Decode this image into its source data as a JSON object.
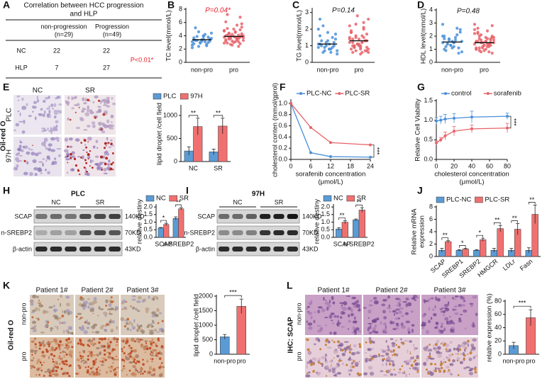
{
  "labels": [
    "A",
    "B",
    "C",
    "D",
    "E",
    "F",
    "G",
    "H",
    "I",
    "J",
    "K",
    "L"
  ],
  "table": {
    "title": [
      "Correlation between HCC progression",
      "and HLP"
    ],
    "header": [
      [
        "non-progression",
        "(n=29)"
      ],
      [
        "Progression",
        "(n=49)"
      ]
    ],
    "rows": [
      [
        "NC",
        22,
        22
      ],
      [
        "HLP",
        7,
        27
      ]
    ],
    "note": "P<0.01*"
  },
  "images": {
    "E": {
      "columns": [
        "NC",
        "SR"
      ],
      "rows": [
        "PLC",
        "97H"
      ],
      "stain": "Oil-red O"
    },
    "H": {
      "title": "PLC",
      "columns": [
        "NC",
        "SR"
      ],
      "rows": [
        "SCAP",
        "n-SREBP2",
        "β-actin"
      ],
      "sizes": [
        "140KD",
        "70KD",
        "43KD"
      ]
    },
    "I": {
      "title": "97H",
      "columns": [
        "NC",
        "SR"
      ],
      "rows": [
        "SCAP",
        "n-SREBP2",
        "β-actin"
      ],
      "sizes": [
        "140KD",
        "70KD",
        "43KD"
      ]
    },
    "K": {
      "columns": [
        "Patient 1#",
        "Patient 2#",
        "Patient 3#"
      ],
      "rows": [
        "non-pro",
        "pro"
      ],
      "stain": "Oil-red O"
    },
    "L": {
      "columns": [
        "Patient 1#",
        "Patient 2#",
        "Patient 3#"
      ],
      "rows": [
        "non-pro",
        "pro"
      ],
      "stain": "IHC: SCAP"
    }
  },
  "chart_data": [
    {
      "type": "strip",
      "ylabel": "TC level(mmol/L)",
      "annotation": "P=0.04*",
      "annotation_color": "#e8202a",
      "categories": [
        "non-pro",
        "pro"
      ],
      "colors": [
        "#4a90d9",
        "#e8636a"
      ],
      "values": [
        [
          3.1,
          3.5,
          2.8,
          4.2,
          3.3,
          2.5,
          3.9,
          3.0,
          4.6,
          3.2,
          2.9,
          3.6,
          3.4,
          2.2,
          4.0,
          3.7,
          3.1,
          5.2,
          2.7,
          3.3,
          3.8,
          2.4,
          3.5,
          3.0,
          4.4,
          3.2,
          2.6,
          3.9,
          3.4
        ],
        [
          3.8,
          4.5,
          3.2,
          5.6,
          2.9,
          4.1,
          3.5,
          6.8,
          3.9,
          4.3,
          2.6,
          3.7,
          5.0,
          4.8,
          3.1,
          4.0,
          3.4,
          7.2,
          3.6,
          4.4,
          2.8,
          3.9,
          5.3,
          4.2,
          3.3,
          3.0,
          4.7,
          3.8,
          6.1,
          3.5,
          4.1,
          2.4,
          3.7,
          4.9,
          3.6,
          5.8,
          3.2,
          4.0,
          3.9,
          2.9,
          4.6,
          3.4,
          3.7,
          5.1,
          3.1,
          4.3,
          3.8,
          2.7,
          4.0
        ]
      ],
      "means": [
        3.4,
        3.9
      ],
      "ylim": [
        0,
        8
      ],
      "yticks": [
        0,
        2,
        4,
        6,
        8
      ]
    },
    {
      "type": "strip",
      "ylabel": "TG level(mmol/L)",
      "annotation": "P=0.14",
      "annotation_color": "#111111",
      "categories": [
        "non-pro",
        "pro"
      ],
      "colors": [
        "#4a90d9",
        "#e8636a"
      ],
      "values": [
        [
          1.1,
          0.8,
          1.6,
          0.6,
          1.3,
          0.9,
          2.2,
          1.0,
          0.7,
          1.4,
          1.2,
          0.5,
          1.8,
          0.9,
          1.1,
          2.6,
          0.8,
          1.0,
          1.5,
          0.6,
          1.2,
          0.9,
          1.7,
          1.0,
          0.7,
          1.3,
          2.0,
          0.8,
          1.1
        ],
        [
          1.2,
          0.9,
          1.8,
          0.6,
          1.4,
          2.1,
          1.0,
          0.7,
          1.6,
          1.3,
          2.8,
          0.8,
          1.1,
          1.5,
          0.5,
          1.9,
          1.2,
          1.0,
          2.4,
          0.9,
          1.3,
          0.7,
          1.7,
          1.1,
          0.6,
          1.4,
          2.2,
          1.0,
          0.8,
          1.6,
          1.2,
          2.0,
          0.9,
          1.3,
          1.5,
          0.7,
          1.1,
          2.6,
          1.0,
          1.4,
          0.8,
          1.8,
          1.2,
          0.6,
          1.5,
          1.0,
          1.3,
          2.3,
          0.9
        ]
      ],
      "means": [
        1.1,
        1.3
      ],
      "ylim": [
        0,
        3.2
      ],
      "yticks": [
        0,
        1,
        2,
        3
      ]
    },
    {
      "type": "strip",
      "ylabel": "HDL level(mmol/L)",
      "annotation": "P=0.48",
      "annotation_color": "#111111",
      "categories": [
        "non-pro",
        "pro"
      ],
      "colors": [
        "#4a90d9",
        "#e8636a"
      ],
      "values": [
        [
          1.5,
          1.2,
          2.0,
          1.7,
          0.9,
          2.6,
          1.4,
          1.1,
          1.8,
          2.3,
          1.3,
          0.8,
          1.6,
          2.9,
          1.5,
          1.0,
          1.9,
          1.2,
          2.1,
          1.4,
          0.7,
          1.7,
          2.5,
          1.3,
          1.6,
          1.1,
          2.0,
          1.5,
          1.8
        ],
        [
          1.4,
          1.9,
          1.1,
          2.4,
          1.6,
          0.8,
          2.0,
          1.3,
          1.7,
          2.8,
          1.2,
          1.5,
          0.9,
          2.2,
          1.6,
          1.0,
          1.8,
          2.6,
          1.4,
          1.1,
          1.7,
          2.1,
          0.7,
          1.5,
          1.9,
          1.3,
          2.5,
          1.0,
          1.6,
          1.2,
          2.3,
          1.4,
          0.9,
          1.8,
          1.5,
          2.0,
          1.1,
          1.7,
          1.3,
          2.9,
          1.6,
          1.0,
          1.4,
          2.2,
          1.2,
          1.8,
          1.5,
          0.8,
          1.9
        ]
      ],
      "means": [
        1.55,
        1.5
      ],
      "ylim": [
        0,
        4
      ],
      "yticks": [
        0,
        1,
        2,
        3,
        4
      ]
    },
    {
      "type": "bar",
      "ylabel": "lipid droplet /cell field",
      "categories": [
        "NC",
        "SR"
      ],
      "series": [
        {
          "name": "PLC",
          "color": "#5b9bd5",
          "values": [
            230,
            210
          ],
          "errors": [
            90,
            60
          ]
        },
        {
          "name": "97H",
          "color": "#f07070",
          "values": [
            760,
            770
          ],
          "errors": [
            180,
            170
          ]
        }
      ],
      "significance": [
        "**",
        "**"
      ],
      "ylim": [
        0,
        1200
      ],
      "yticks": [
        0,
        500,
        1000
      ]
    },
    {
      "type": "line",
      "ylabel": "cholesterol conten (mmol/gprol)",
      "xlabel": [
        "sorafenib concentration",
        "(μmol/L)"
      ],
      "x": [
        0,
        6,
        12,
        24
      ],
      "xlim": [
        0,
        24
      ],
      "xticks": [
        0,
        6,
        12,
        18,
        24
      ],
      "series": [
        {
          "name": "PLC-NC",
          "color": "#4a90d9",
          "values": [
            1.0,
            0.12,
            0.05,
            0.04
          ]
        },
        {
          "name": "PLC-SR",
          "color": "#e8636a",
          "values": [
            1.0,
            0.57,
            0.3,
            0.26
          ]
        }
      ],
      "annotation": "***",
      "ylim": [
        0,
        1.05
      ],
      "yticks": [
        {
          "value": 0,
          "label": "0.0"
        },
        {
          "value": 0.2,
          "label": "0.2"
        },
        {
          "value": 0.4,
          "label": "0.4"
        },
        {
          "value": 0.6,
          "label": "0.6"
        },
        {
          "value": 0.8,
          "label": "0.8"
        },
        {
          "value": 1,
          "label": "1.0"
        }
      ]
    },
    {
      "type": "line",
      "ylabel": "Relative Cell Viability",
      "xlabel": [
        "cholesterol concentration",
        "(μmol/L)"
      ],
      "x": [
        0,
        5,
        10,
        20,
        40,
        80
      ],
      "xlim": [
        0,
        80
      ],
      "xticks": [
        0,
        20,
        40,
        60,
        80
      ],
      "series": [
        {
          "name": "control",
          "color": "#4a90d9",
          "values": [
            0.98,
            1.0,
            1.03,
            1.05,
            1.08,
            1.1
          ],
          "errors": [
            0.08,
            0.1,
            0.12,
            0.12,
            0.15,
            0.08
          ]
        },
        {
          "name": "sorafenib",
          "color": "#e8636a",
          "values": [
            0.42,
            0.5,
            0.6,
            0.72,
            0.78,
            0.8
          ],
          "errors": [
            0.05,
            0.06,
            0.1,
            0.12,
            0.1,
            0.12
          ]
        }
      ],
      "annotation": "***",
      "ylim": [
        0,
        1.5
      ],
      "yticks": [
        {
          "value": 0,
          "label": "0.0"
        },
        {
          "value": 0.5,
          "label": "0.5"
        },
        {
          "value": 1,
          "label": "1.0"
        },
        {
          "value": 1.5,
          "label": "1.5"
        }
      ]
    },
    {
      "type": "bar",
      "ylabel": "relative destiny",
      "categories": [
        "SCAP",
        "n-SREBP2"
      ],
      "series": [
        {
          "name": "NC",
          "color": "#5b9bd5",
          "values": [
            0.62,
            1.25
          ],
          "errors": [
            0.03,
            0.1
          ]
        },
        {
          "name": "SR",
          "color": "#f07070",
          "values": [
            0.85,
            1.88
          ],
          "errors": [
            0.08,
            0.08
          ]
        }
      ],
      "significance": [
        "*",
        "**"
      ],
      "ylim": [
        0,
        2.1
      ],
      "yticks": [
        {
          "value": 0,
          "label": "0.0"
        },
        {
          "value": 0.5,
          "label": "0.5"
        },
        {
          "value": 1,
          "label": "1.0"
        },
        {
          "value": 1.5,
          "label": "1.5"
        },
        {
          "value": 2,
          "label": "2.0"
        }
      ]
    },
    {
      "type": "bar",
      "ylabel": "relative destiny",
      "categories": [
        "SCAP",
        "n-SREBP2"
      ],
      "series": [
        {
          "name": "NC",
          "color": "#5b9bd5",
          "values": [
            0.55,
            1.15
          ],
          "errors": [
            0.08,
            0.06
          ]
        },
        {
          "name": "SR",
          "color": "#f07070",
          "values": [
            1.0,
            1.8
          ],
          "errors": [
            0.1,
            0.15
          ]
        }
      ],
      "significance": [
        "**",
        "**"
      ],
      "ylim": [
        0,
        2.1
      ],
      "yticks": [
        {
          "value": 0,
          "label": "0.0"
        },
        {
          "value": 0.5,
          "label": "0.5"
        },
        {
          "value": 1,
          "label": "1.0"
        },
        {
          "value": 1.5,
          "label": "1.5"
        },
        {
          "value": 2,
          "label": "2.0"
        }
      ]
    },
    {
      "type": "bar",
      "ylabel": [
        "Relative mRNA",
        "expression"
      ],
      "categories": [
        "SCAP",
        "SREBP1",
        "SREBP2",
        "HMGCR",
        "LDLr",
        "Fasn"
      ],
      "series": [
        {
          "name": "PLC-NC",
          "color": "#5b9bd5",
          "values": [
            1.0,
            1.0,
            1.0,
            1.0,
            1.0,
            1.0
          ],
          "errors": [
            0.3,
            0.1,
            0.1,
            0.3,
            0.3,
            0.4
          ]
        },
        {
          "name": "PLC-SR",
          "color": "#f07070",
          "values": [
            2.4,
            1.2,
            2.7,
            4.5,
            4.4,
            6.8
          ],
          "errors": [
            0.15,
            0.1,
            0.25,
            0.5,
            0.9,
            1.5
          ]
        }
      ],
      "significance": [
        "**",
        "*",
        "*",
        "**",
        "**",
        "**"
      ],
      "ylim": [
        0,
        8
      ],
      "yticks": [
        0,
        2,
        4,
        6,
        8
      ]
    },
    {
      "type": "bar",
      "ylabel": "lipid droplet /cell field",
      "categories": [
        "non-pro",
        "pro"
      ],
      "values": [
        600,
        1650
      ],
      "errors": [
        80,
        250
      ],
      "colors": [
        "#5b9bd5",
        "#f07070"
      ],
      "annotation": "***",
      "ylim": [
        0,
        2000
      ],
      "yticks": [
        0,
        500,
        1000,
        1500,
        2000
      ]
    },
    {
      "type": "bar",
      "ylabel": "relative expression (%)",
      "categories": [
        "non-pro",
        "pro"
      ],
      "values": [
        13,
        55
      ],
      "errors": [
        5,
        12
      ],
      "colors": [
        "#5b9bd5",
        "#f07070"
      ],
      "annotation": "***",
      "ylim": [
        0,
        80
      ],
      "yticks": [
        0,
        20,
        40,
        60,
        80
      ]
    }
  ]
}
